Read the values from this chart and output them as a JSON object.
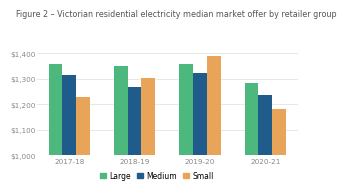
{
  "title": "Figure 2 – Victorian residential electricity median market offer by retailer group",
  "categories": [
    "2017-18",
    "2018-19",
    "2019-20",
    "2020-21"
  ],
  "series": {
    "Large": [
      1360,
      1350,
      1360,
      1285
    ],
    "Medium": [
      1315,
      1270,
      1325,
      1235
    ],
    "Small": [
      1230,
      1305,
      1390,
      1180
    ]
  },
  "colors": {
    "Large": "#4db87e",
    "Medium": "#1f5c8b",
    "Small": "#e8a55a"
  },
  "ylim": [
    1000,
    1450
  ],
  "yticks": [
    1000,
    1100,
    1200,
    1300,
    1400
  ],
  "legend_order": [
    "Large",
    "Medium",
    "Small"
  ],
  "background_color": "#ffffff",
  "title_fontsize": 5.8,
  "tick_fontsize": 5.2,
  "legend_fontsize": 5.5,
  "bar_width": 0.21,
  "title_color": "#555555",
  "tick_color": "#888888",
  "grid_color": "#dddddd"
}
